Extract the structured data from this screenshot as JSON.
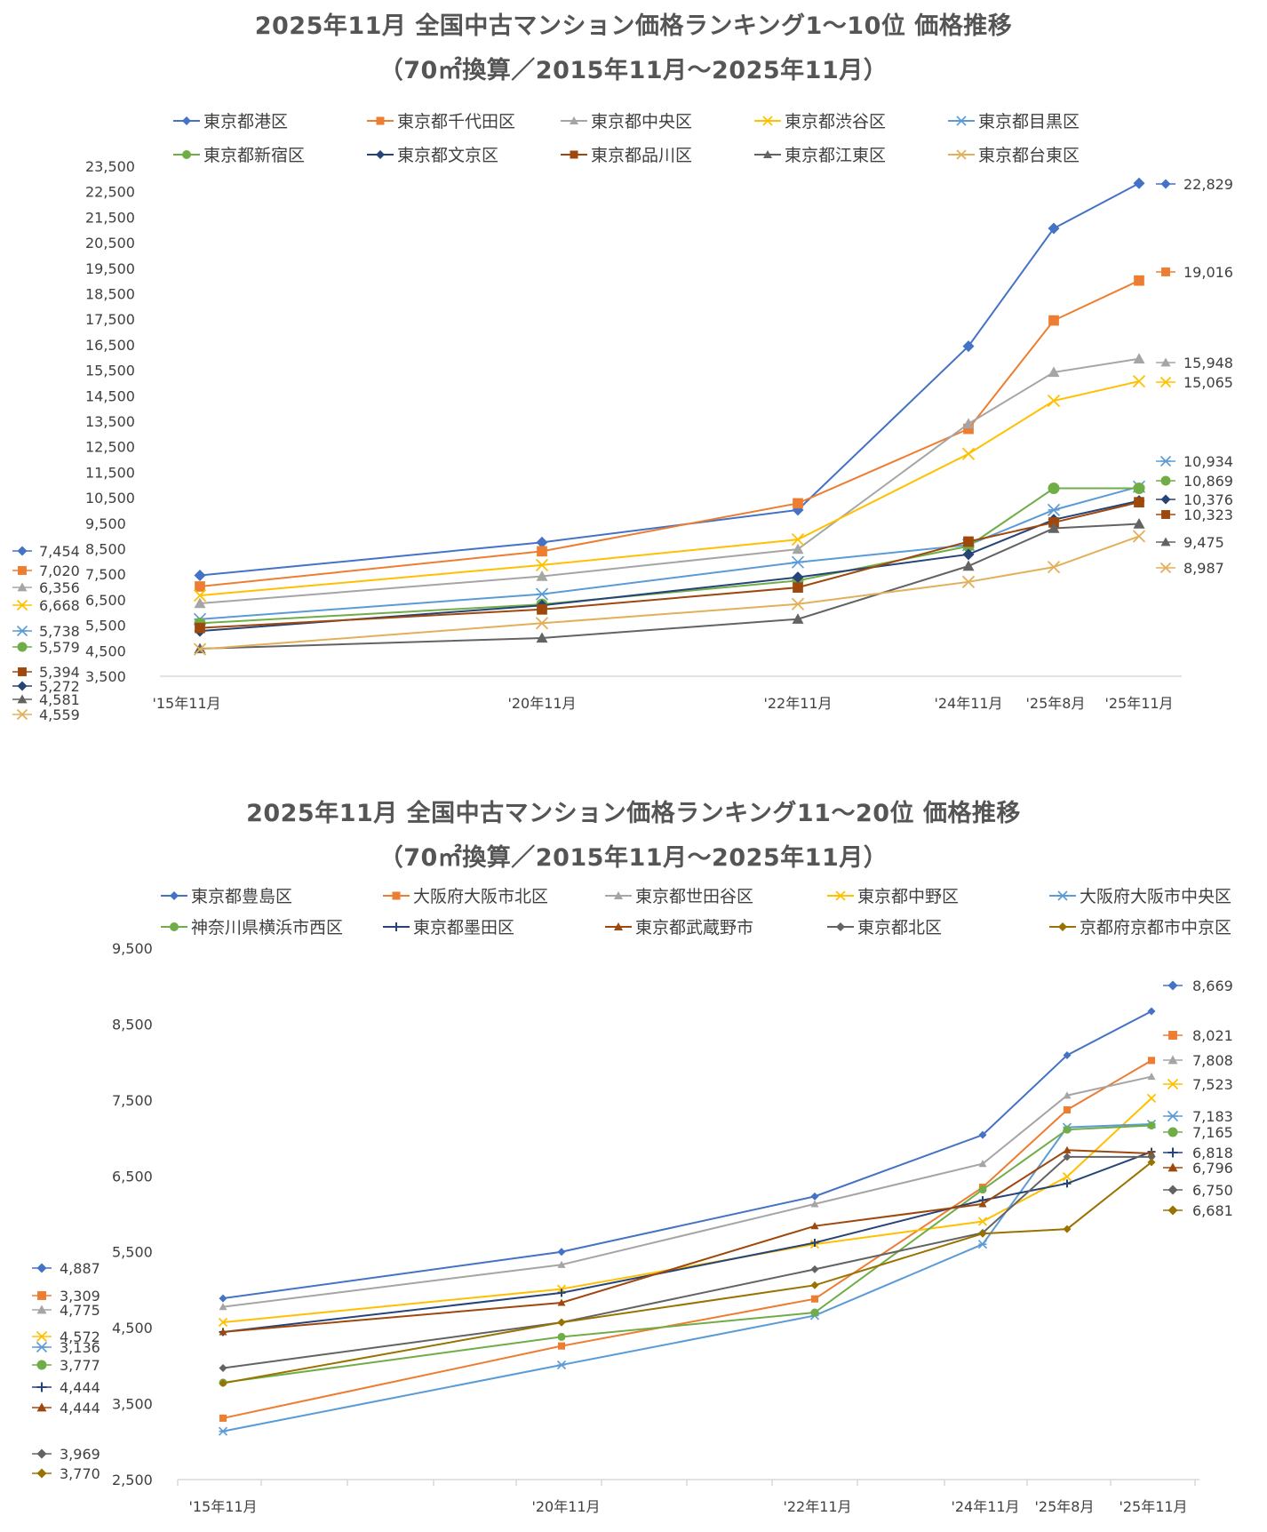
{
  "chart_data": [
    {
      "type": "line",
      "title": "2025年11月 全国中古マンション価格ランキング1～10位 価格推移",
      "subtitle": "（70㎡換算／2015年11月～2025年11月）",
      "categories": [
        "'15年11月",
        "'20年11月",
        "'22年11月",
        "'24年11月",
        "'25年8月",
        "'25年11月"
      ],
      "ylim": [
        3500,
        23500
      ],
      "yticks": [
        3500,
        4500,
        5500,
        6500,
        7500,
        8500,
        9500,
        10500,
        11500,
        12500,
        13500,
        14500,
        15500,
        16500,
        17500,
        18500,
        19500,
        20500,
        21500,
        22500,
        23500
      ],
      "ytick_labels": [
        "3,500",
        "4,500",
        "5,500",
        "6,500",
        "7,500",
        "8,500",
        "9,500",
        "10,500",
        "11,500",
        "12,500",
        "13,500",
        "14,500",
        "15,500",
        "16,500",
        "17,500",
        "18,500",
        "19,500",
        "20,500",
        "21,500",
        "22,500",
        "23,500"
      ],
      "series": [
        {
          "name": "東京都港区",
          "color": "#4472C4",
          "marker": "diamond",
          "values": [
            7454,
            8750,
            10020,
            16440,
            21060,
            22829
          ],
          "start_label": "7,454",
          "end_label": "22,829"
        },
        {
          "name": "東京都千代田区",
          "color": "#ED7D31",
          "marker": "square",
          "values": [
            7020,
            8400,
            10280,
            13200,
            17450,
            19016
          ],
          "start_label": "7,020",
          "end_label": "19,016"
        },
        {
          "name": "東京都中央区",
          "color": "#A5A5A5",
          "marker": "triangle",
          "values": [
            6356,
            7420,
            8480,
            13400,
            15420,
            15948
          ],
          "start_label": "6,356",
          "end_label": "15,948"
        },
        {
          "name": "東京都渋谷区",
          "color": "#FFC000",
          "marker": "x",
          "values": [
            6668,
            7860,
            8860,
            12220,
            14300,
            15065
          ],
          "start_label": "6,668",
          "end_label": "15,065"
        },
        {
          "name": "東京都目黒区",
          "color": "#5B9BD5",
          "marker": "star",
          "values": [
            5738,
            6720,
            7970,
            8650,
            10020,
            10934
          ],
          "start_label": "5,738",
          "end_label": "10,934"
        },
        {
          "name": "東京都新宿区",
          "color": "#70AD47",
          "marker": "circle",
          "values": [
            5579,
            6320,
            7250,
            8600,
            10869,
            10869
          ],
          "start_label": "5,579",
          "end_label": "10,869"
        },
        {
          "name": "東京都文京区",
          "color": "#264478",
          "marker": "diamond",
          "values": [
            5272,
            6280,
            7380,
            8280,
            9640,
            10376
          ],
          "start_label": "5,272",
          "end_label": "10,376"
        },
        {
          "name": "東京都品川区",
          "color": "#9E480E",
          "marker": "square",
          "values": [
            5394,
            6120,
            6980,
            8780,
            9530,
            10323
          ],
          "start_label": "5,394",
          "end_label": "10,323"
        },
        {
          "name": "東京都江東区",
          "color": "#636363",
          "marker": "triangle",
          "values": [
            4581,
            5000,
            5740,
            7820,
            9300,
            9475
          ],
          "start_label": "4,581",
          "end_label": "9,475"
        },
        {
          "name": "東京都台東区",
          "color": "#E2B05A",
          "marker": "x",
          "values": [
            4559,
            5580,
            6330,
            7200,
            7780,
            8987
          ],
          "start_label": "4,559",
          "end_label": "8,987"
        }
      ]
    },
    {
      "type": "line",
      "title": "2025年11月 全国中古マンション価格ランキング11～20位 価格推移",
      "subtitle": "（70㎡換算／2015年11月～2025年11月）",
      "categories": [
        "'15年11月",
        "'20年11月",
        "'22年11月",
        "'24年11月",
        "'25年8月",
        "'25年11月"
      ],
      "ylim": [
        2500,
        9500
      ],
      "yticks": [
        2500,
        3500,
        4500,
        5500,
        6500,
        7500,
        8500,
        9500
      ],
      "ytick_labels": [
        "2,500",
        "3,500",
        "4,500",
        "5,500",
        "6,500",
        "7,500",
        "8,500",
        "9,500"
      ],
      "series": [
        {
          "name": "東京都豊島区",
          "color": "#4472C4",
          "marker": "diamond",
          "values": [
            4887,
            5500,
            6230,
            7040,
            8090,
            8669
          ],
          "start_label": "4,887",
          "end_label": "8,669"
        },
        {
          "name": "大阪府大阪市北区",
          "color": "#ED7D31",
          "marker": "square",
          "values": [
            3309,
            4260,
            4880,
            6350,
            7370,
            8021
          ],
          "start_label": "3,309",
          "end_label": "8,021"
        },
        {
          "name": "東京都世田谷区",
          "color": "#A5A5A5",
          "marker": "triangle",
          "values": [
            4775,
            5330,
            6130,
            6660,
            7560,
            7808
          ],
          "start_label": "4,775",
          "end_label": "7,808"
        },
        {
          "name": "東京都中野区",
          "color": "#FFC000",
          "marker": "x",
          "values": [
            4572,
            5010,
            5600,
            5900,
            6490,
            7523
          ],
          "start_label": "4,572",
          "end_label": "7,523"
        },
        {
          "name": "大阪府大阪市中央区",
          "color": "#5B9BD5",
          "marker": "star",
          "values": [
            3136,
            4010,
            4660,
            5600,
            7140,
            7183
          ],
          "start_label": "3,136",
          "end_label": "7,183"
        },
        {
          "name": "神奈川県横浜市西区",
          "color": "#70AD47",
          "marker": "circle",
          "values": [
            3777,
            4380,
            4700,
            6320,
            7110,
            7165
          ],
          "start_label": "3,777",
          "end_label": "7,165"
        },
        {
          "name": "東京都墨田区",
          "color": "#264478",
          "marker": "plus",
          "values": [
            4444,
            4960,
            5620,
            6180,
            6400,
            6818
          ],
          "start_label": "4,444",
          "end_label": "6,818"
        },
        {
          "name": "東京都武蔵野市",
          "color": "#9E480E",
          "marker": "triangle",
          "values": [
            4444,
            4830,
            5840,
            6130,
            6840,
            6796
          ],
          "start_label": "4,444",
          "end_label": "6,796"
        },
        {
          "name": "東京都北区",
          "color": "#636363",
          "marker": "diamond",
          "values": [
            3969,
            4570,
            5270,
            5750,
            6750,
            6750
          ],
          "start_label": "3,969",
          "end_label": "6,750"
        },
        {
          "name": "京都府京都市中京区",
          "color": "#997300",
          "marker": "diamond",
          "values": [
            3770,
            4570,
            5060,
            5740,
            5800,
            6681
          ],
          "start_label": "3,770",
          "end_label": "6,681"
        }
      ]
    }
  ]
}
